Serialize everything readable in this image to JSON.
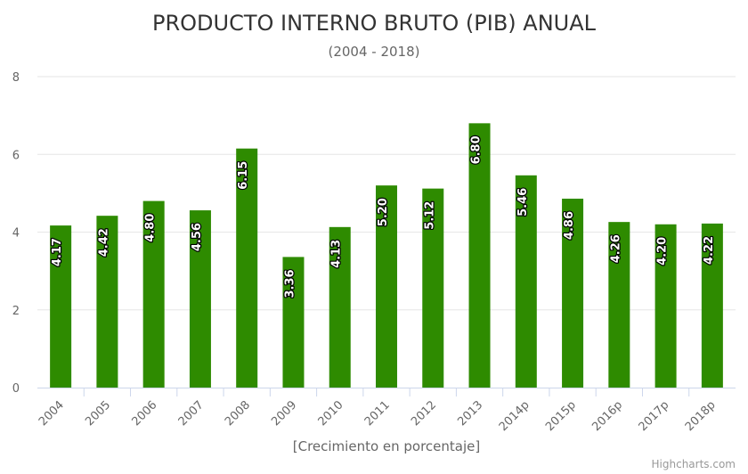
{
  "chart_data": {
    "type": "bar",
    "title": "PRODUCTO INTERNO BRUTO (PIB) ANUAL",
    "subtitle": "(2004 - 2018)",
    "xlabel": "[Crecimiento en porcentaje]",
    "ylabel": "",
    "categories": [
      "2004",
      "2005",
      "2006",
      "2007",
      "2008",
      "2009",
      "2010",
      "2011",
      "2012",
      "2013",
      "2014p",
      "2015p",
      "2016p",
      "2017p",
      "2018p"
    ],
    "series": [
      {
        "values": [
          4.17,
          4.42,
          4.8,
          4.56,
          6.15,
          3.36,
          4.13,
          5.2,
          5.12,
          6.8,
          5.46,
          4.86,
          4.26,
          4.2,
          4.22
        ]
      }
    ],
    "data_labels": [
      "4.17",
      "4.42",
      "4.80",
      "4.56",
      "6.15",
      "3.36",
      "4.13",
      "5.20",
      "5.12",
      "6.80",
      "5.46",
      "4.86",
      "4.26",
      "4.20",
      "4.22"
    ],
    "ylim": [
      0,
      8
    ],
    "yticks": [
      "0",
      "2",
      "4",
      "6",
      "8"
    ],
    "grid": true,
    "legend": "none",
    "colors": {
      "bar": "#2e8b00",
      "grid": "#e6e6e6",
      "axis": "#ccd6eb"
    },
    "credits": "Highcharts.com"
  }
}
